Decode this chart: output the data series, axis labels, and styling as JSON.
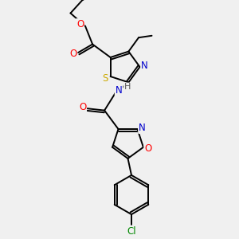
{
  "bg_color": "#f0f0f0",
  "atom_colors": {
    "O": "#ff0000",
    "N": "#0000cc",
    "S": "#ccaa00",
    "Cl": "#008800",
    "C": "#000000",
    "H": "#555555"
  },
  "font_size": 8.5,
  "bond_width": 1.4,
  "figsize": [
    3.0,
    3.0
  ],
  "dpi": 100,
  "xlim": [
    0,
    10
  ],
  "ylim": [
    0,
    10
  ]
}
